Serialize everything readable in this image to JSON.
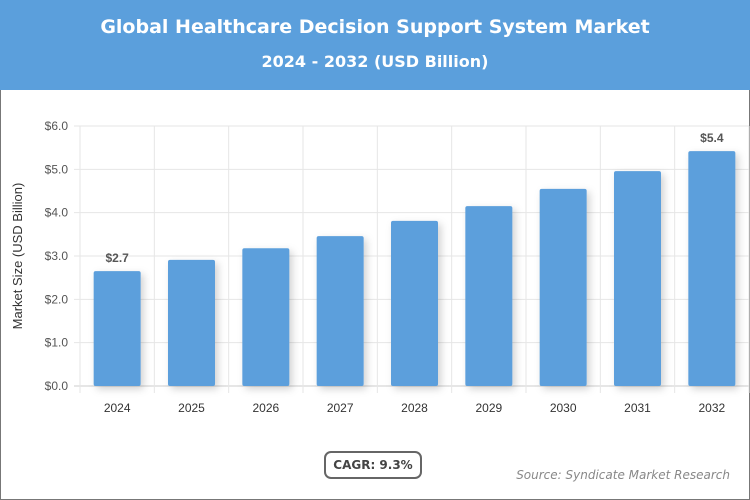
{
  "header": {
    "title": "Global Healthcare Decision Support System Market",
    "subtitle": "2024 - 2032 (USD Billion)"
  },
  "footer": {
    "cagr": "CAGR: 9.3%",
    "source": "Source: Syndicate Market Research"
  },
  "chart_data": {
    "type": "bar",
    "title": "Global Healthcare Decision Support System Market",
    "subtitle": "2024 - 2032 (USD Billion)",
    "xlabel": "",
    "ylabel": "Market Size (USD Billion)",
    "categories": [
      "2024",
      "2025",
      "2026",
      "2027",
      "2028",
      "2029",
      "2030",
      "2031",
      "2032"
    ],
    "values": [
      2.65,
      2.91,
      3.18,
      3.46,
      3.81,
      4.15,
      4.55,
      4.96,
      5.42
    ],
    "data_labels": {
      "0": "$2.7",
      "8": "$5.4"
    },
    "ylim": [
      0,
      6
    ],
    "yticks": [
      "$0.0",
      "$1.0",
      "$2.0",
      "$3.0",
      "$4.0",
      "$5.0",
      "$6.0"
    ],
    "grid": true,
    "bar_color": "#5b9fdc",
    "header_color": "#5b9fdc"
  }
}
